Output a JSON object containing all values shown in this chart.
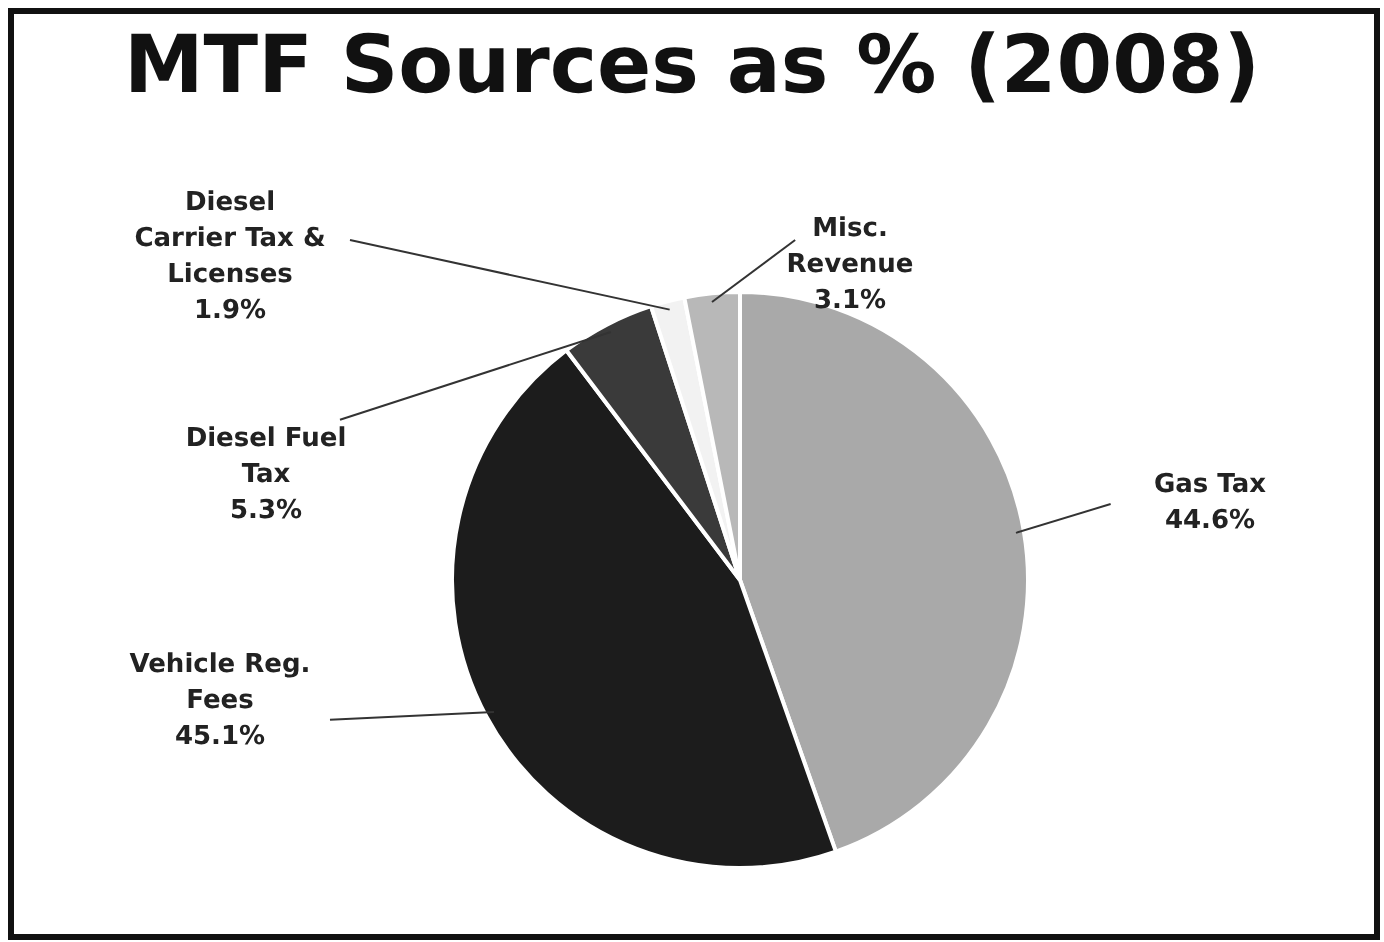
{
  "chart_data": {
    "type": "pie",
    "title": "MTF Sources as % (2008)",
    "categories": [
      "Gas Tax",
      "Vehicle Reg.\nFees",
      "Diesel Fuel\nTax",
      "Diesel\nCarrier Tax &\nLicenses",
      "Misc.\nRevenue"
    ],
    "values": [
      44.6,
      45.1,
      5.3,
      1.9,
      3.1
    ],
    "colors": [
      "#a9a9a9",
      "#1c1c1c",
      "#3a3a3a",
      "#f2f2f2",
      "#b8b8b8"
    ],
    "value_labels": [
      "44.6%",
      "45.1%",
      "5.3%",
      "1.9%",
      "3.1%"
    ],
    "legend": false
  }
}
